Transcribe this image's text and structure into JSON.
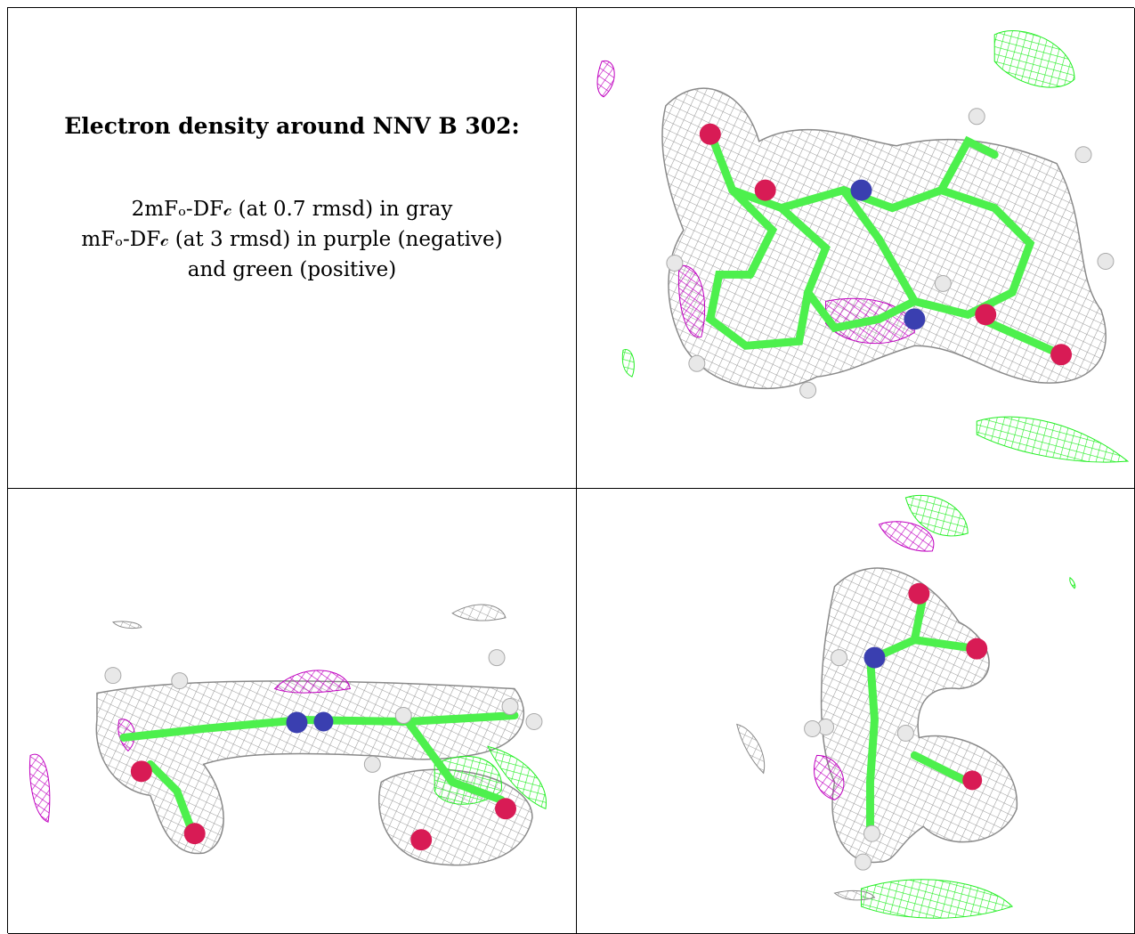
{
  "caption": {
    "title": "Electron density around NNV B 302:",
    "lines": [
      "2mFₒ-DF𝒸 (at 0.7 rmsd) in gray",
      "mFₒ-DF𝒸 (at 3 rmsd) in purple (negative)",
      "and green (positive)"
    ]
  },
  "colors": {
    "gray_mesh": "#9a9a9a",
    "negative_mesh": "#c000c0",
    "positive_mesh": "#22ee22",
    "bond_green": "#4df04d",
    "nitrogen": "#3a3fb0",
    "oxygen": "#d81b55",
    "hydrogen": "#e8e8e8"
  },
  "views": [
    {
      "id": "top-view"
    },
    {
      "id": "side-view"
    },
    {
      "id": "end-view"
    }
  ]
}
